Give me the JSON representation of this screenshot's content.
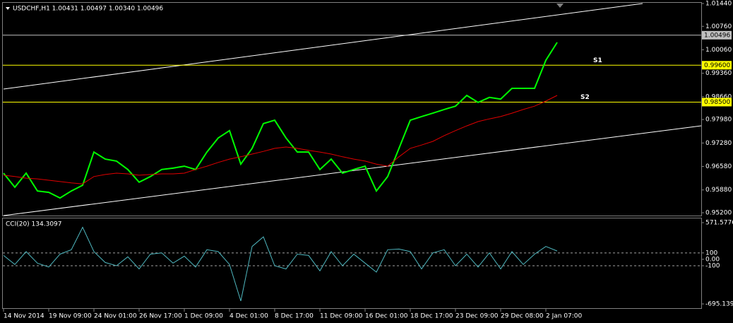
{
  "chart_data": [
    {
      "type": "line",
      "title": "USDCHF,H1  1.00431 1.00497 1.00340 1.00496",
      "categories": [
        "14 Nov 2014",
        null,
        null,
        null,
        "19 Nov 09:00",
        null,
        null,
        null,
        "24 Nov 01:00",
        null,
        null,
        null,
        "26 Nov 17:00",
        null,
        null,
        null,
        "1 Dec 09:00",
        null,
        null,
        null,
        "4 Dec 01:00",
        null,
        null,
        null,
        "8 Dec 17:00",
        null,
        null,
        null,
        "11 Dec 09:00",
        null,
        null,
        null,
        "16 Dec 01:00",
        null,
        null,
        null,
        "18 Dec 17:00",
        null,
        null,
        null,
        "23 Dec 09:00",
        null,
        null,
        null,
        "29 Dec 08:00",
        null,
        null,
        null,
        "2 Jan 07:00",
        null
      ],
      "series": [
        {
          "color": "#00ff00",
          "values": [
            0.9638,
            0.9596,
            0.9638,
            0.9585,
            0.9581,
            0.9564,
            0.9585,
            0.9602,
            0.9701,
            0.968,
            0.9674,
            0.9649,
            0.9611,
            0.9628,
            0.9649,
            0.9653,
            0.9659,
            0.9649,
            0.9701,
            0.9743,
            0.9765,
            0.9665,
            0.9712,
            0.9786,
            0.9796,
            0.9743,
            0.9701,
            0.9701,
            0.9649,
            0.968,
            0.9638,
            0.9649,
            0.9659,
            0.9585,
            0.9628,
            0.9712,
            0.9796,
            0.9807,
            0.9817,
            0.9828,
            0.9838,
            0.987,
            0.9849,
            0.9864,
            0.9859,
            0.9891,
            0.9891,
            0.9891,
            0.9975,
            1.0028
          ]
        },
        {
          "color": "#e00000",
          "values": [
            0.9632,
            0.9628,
            0.9623,
            0.9621,
            0.9617,
            0.9613,
            0.9609,
            0.9606,
            0.9628,
            0.9634,
            0.9638,
            0.9636,
            0.9632,
            0.9634,
            0.9636,
            0.9636,
            0.9638,
            0.9649,
            0.9659,
            0.967,
            0.968,
            0.9687,
            0.9695,
            0.9703,
            0.9712,
            0.9716,
            0.9712,
            0.9706,
            0.9701,
            0.9695,
            0.9687,
            0.968,
            0.9674,
            0.9665,
            0.9659,
            0.9687,
            0.9712,
            0.9722,
            0.9733,
            0.975,
            0.9765,
            0.9779,
            0.9792,
            0.98,
            0.9807,
            0.9817,
            0.9828,
            0.9838,
            0.9853,
            0.987
          ]
        }
      ],
      "ylim": [
        0.952,
        1.0144
      ],
      "yticks": [
        {
          "value": 1.0144,
          "label": "1.01440"
        },
        {
          "value": 1.0076,
          "label": "1.00760"
        },
        {
          "value": 1.0006,
          "label": "1.00060"
        },
        {
          "value": 0.9936,
          "label": "0.99360"
        },
        {
          "value": 0.9866,
          "label": "0.98660"
        },
        {
          "value": 0.9798,
          "label": "0.97980"
        },
        {
          "value": 0.9728,
          "label": "0.97280"
        },
        {
          "value": 0.9658,
          "label": "0.96580"
        },
        {
          "value": 0.9588,
          "label": "0.95880"
        },
        {
          "value": 0.952,
          "label": "0.95200"
        }
      ],
      "levels": [
        {
          "value": 1.00496,
          "label": "1.00496",
          "color": "#c0c0c0"
        },
        {
          "value": 0.996,
          "label": "0.99600",
          "color": "#ffff00",
          "name": "S1"
        },
        {
          "value": 0.985,
          "label": "0.98500",
          "color": "#ffff00",
          "name": "S2"
        }
      ]
    },
    {
      "type": "line",
      "title": "CCI(20) 134.3097",
      "series": [
        {
          "color": "#4fb8c0",
          "values": [
            60,
            -80,
            120,
            -60,
            -120,
            80,
            150,
            500,
            120,
            -50,
            -100,
            40,
            -150,
            80,
            100,
            -60,
            50,
            -120,
            150,
            120,
            -80,
            -650,
            200,
            350,
            -100,
            -150,
            80,
            60,
            -180,
            120,
            -100,
            80,
            -60,
            -200,
            150,
            160,
            120,
            -150,
            100,
            150,
            -100,
            80,
            -120,
            100,
            -150,
            120,
            -80,
            80,
            200,
            130
          ]
        }
      ],
      "ylim": [
        -695.1398,
        571.5776
      ],
      "yticks": [
        571.5776,
        100,
        {
          "value": 0,
          "label": "0.00"
        },
        -100,
        -695.1398
      ],
      "levels": [
        100,
        -100
      ]
    }
  ]
}
